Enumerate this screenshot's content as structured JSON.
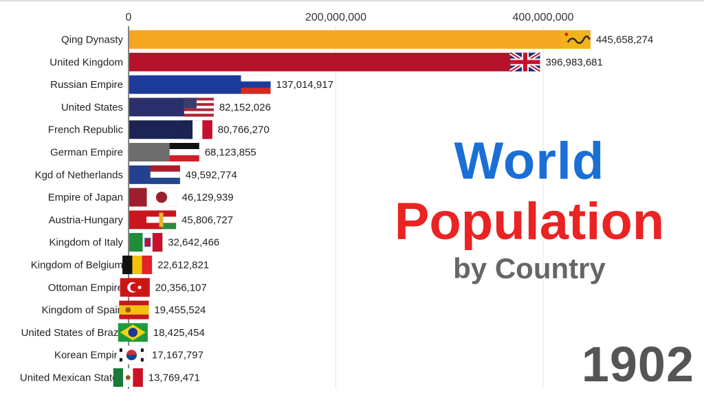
{
  "chart_data": {
    "type": "bar",
    "orientation": "horizontal",
    "title": "World Population",
    "subtitle": "by Country",
    "year": "1902",
    "xlim": [
      0,
      470000000
    ],
    "xticks": [
      0,
      200000000,
      400000000
    ],
    "xtick_labels": [
      "0",
      "200,000,000",
      "400,000,000"
    ],
    "grid": true,
    "categories": [
      "Qing Dynasty",
      "United Kingdom",
      "Russian Empire",
      "United States",
      "French Republic",
      "German Empire",
      "Kgd of Netherlands",
      "Empire of Japan",
      "Austria-Hungary",
      "Kingdom of Italy",
      "Kingdom of Belgium",
      "Ottoman Empire",
      "Kingdom of Spain",
      "United States of Brazil",
      "Korean Empire",
      "United Mexican States"
    ],
    "values": [
      445658274,
      396983681,
      137014917,
      82152026,
      80766270,
      68123855,
      49592774,
      46129939,
      45806727,
      32642466,
      22612821,
      20356107,
      19455524,
      18425454,
      17167797,
      13769471
    ],
    "value_labels": [
      "445,658,274",
      "396,983,681",
      "137,014,917",
      "82,152,026",
      "80,766,270",
      "68,123,855",
      "49,592,774",
      "46,129,939",
      "45,806,727",
      "32,642,466",
      "22,612,821",
      "20,356,107",
      "19,455,524",
      "18,425,454",
      "17,167,797",
      "13,769,471"
    ],
    "bar_colors": [
      "#f5a623",
      "#b5122a",
      "#1c3a9a",
      "#2b2f6b",
      "#1b2452",
      "#6d6d6d",
      "#24418f",
      "#9b1f2c",
      "#c8161e",
      "#1f8c3a",
      "#111111",
      "#cc1616",
      "#e8a21a",
      "#1f9a3a",
      "#cc1e26",
      "#1a7a3a"
    ],
    "flags": [
      "qing-dragon-flag",
      "uk-flag",
      "russia-flag",
      "us-flag",
      "france-flag",
      "german-empire-flag",
      "netherlands-flag",
      "japan-flag",
      "austria-hungary-flag",
      "italy-flag",
      "belgium-flag",
      "ottoman-flag",
      "spain-flag",
      "brazil-flag",
      "korea-flag",
      "mexico-flag"
    ]
  }
}
